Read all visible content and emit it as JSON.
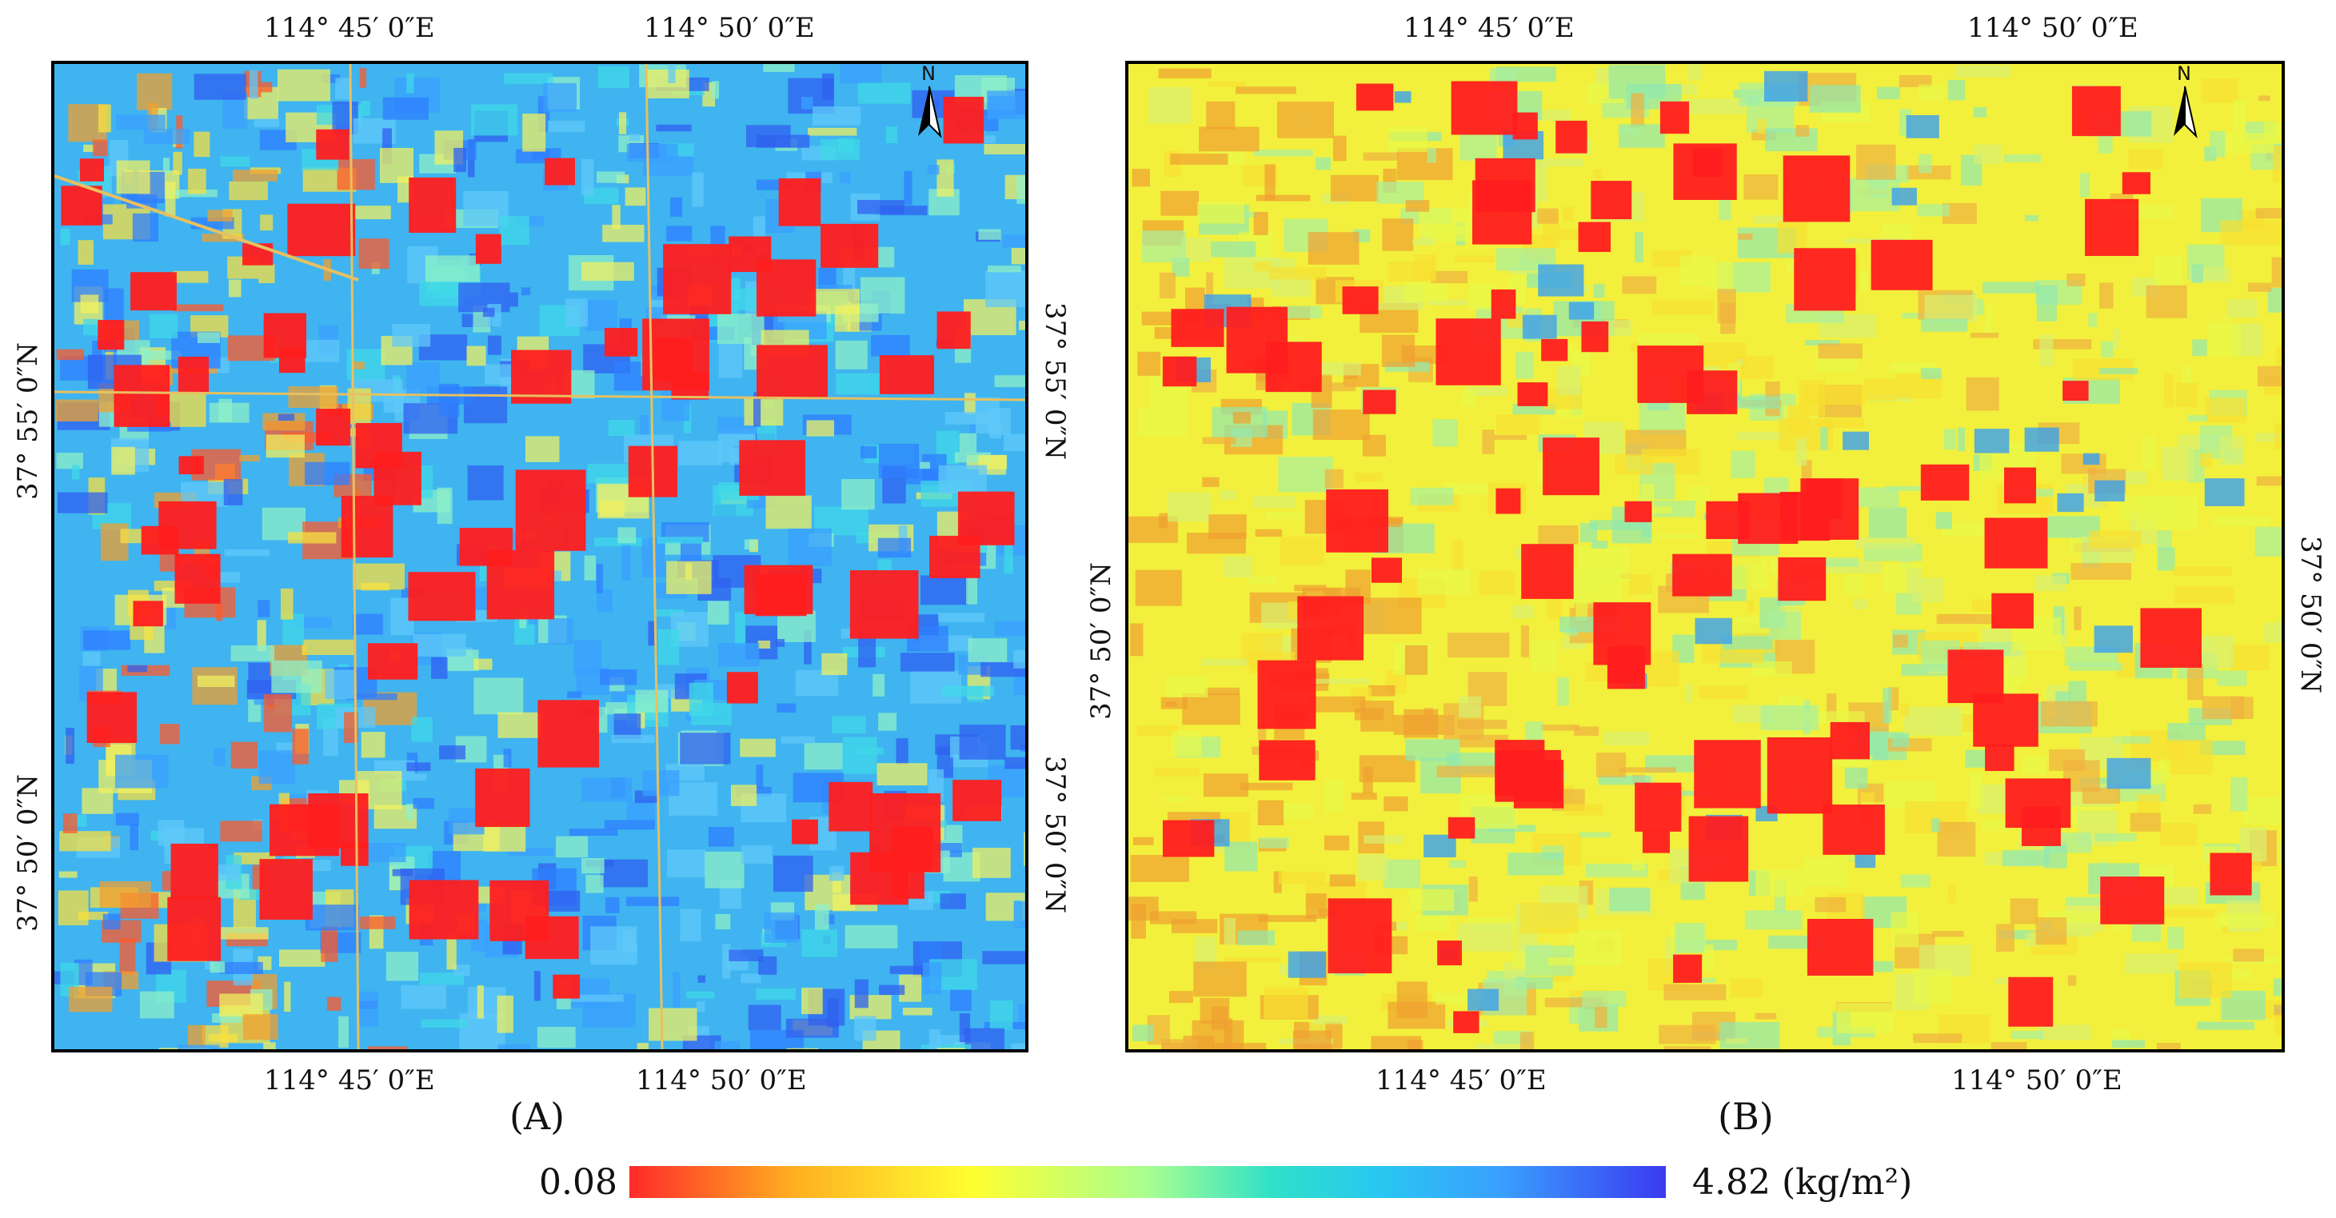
{
  "panel_a": {
    "caption": "(A)",
    "top_labels": [
      "114°  45′ 0″E",
      "114°  50′ 0″E"
    ],
    "bottom_labels": [
      "114°  45′ 0″E",
      "114°  50′ 0″E"
    ],
    "left_labels": [
      "37°  55′ 0″N",
      "37°  50′ 0″N"
    ],
    "right_labels": [
      "37°  55′ 0″N",
      "37°  50′ 0″N"
    ],
    "north_label": "N"
  },
  "panel_b": {
    "caption": "(B)",
    "top_labels": [
      "114°  45′ 0″E",
      "114°  50′ 0″E"
    ],
    "bottom_labels": [
      "114°  45′ 0″E",
      "114°  50′ 0″E"
    ],
    "left_labels": [
      "37°  50′ 0″N"
    ],
    "right_labels": [
      "37°  50′ 0″N"
    ],
    "north_label": "N"
  },
  "legend": {
    "min": "0.08",
    "max": "4.82 (kg/m²)",
    "colors": [
      "#ff2a2a",
      "#ffb020",
      "#ffff30",
      "#a8ff90",
      "#30e0c8",
      "#28c8f0",
      "#3aa0ff",
      "#3a3af0"
    ]
  },
  "palette": {
    "a_background": "#3fb4f0",
    "b_background": "#f2f03c",
    "settlement": "#ff1e1e"
  }
}
